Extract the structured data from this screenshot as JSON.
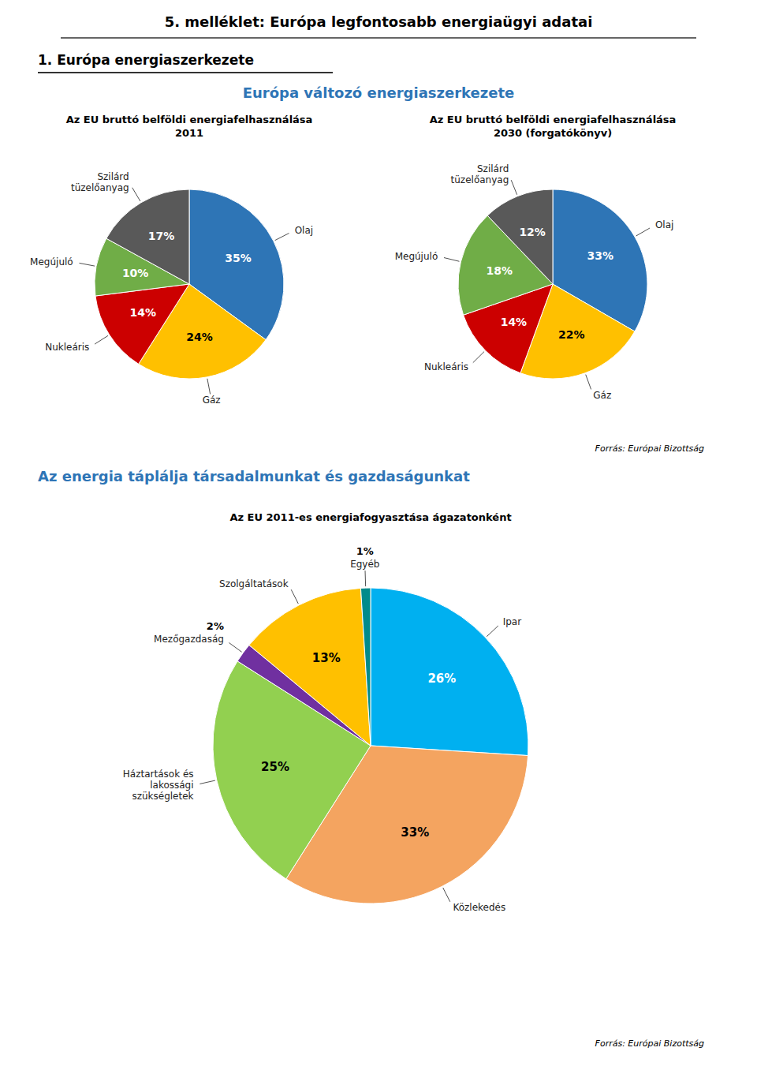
{
  "title": "5. melléklet: Európa legfontosabb energiaügyi adatai",
  "sections": [
    {
      "title": "1. Európa energiaszerkezete",
      "subtitle": "Európa változó energiaszerkezete"
    },
    {
      "title": "Az energia táplálja társadalmunkat és gazdaságunkat"
    }
  ],
  "source": "Forrás: Európai Bizottság",
  "chart_data": [
    {
      "type": "pie",
      "title": "Az EU bruttó belföldi energiafelhasználása",
      "subtitle": "2011",
      "categories": [
        "Olaj",
        "Gáz",
        "Nukleáris",
        "Megújuló",
        "Szilárd\ntüzelőanyag"
      ],
      "values": [
        35,
        24,
        14,
        10,
        17
      ],
      "value_labels": [
        "35%",
        "24%",
        "14%",
        "10%",
        "17%"
      ],
      "colors": [
        "#2E75B6",
        "#FFC000",
        "#CC0000",
        "#70AD47",
        "#595959"
      ],
      "data_labels": true
    },
    {
      "type": "pie",
      "title": "Az EU bruttó belföldi energiafelhasználása",
      "subtitle": "2030 (forgatókönyv)",
      "categories": [
        "Olaj",
        "Gáz",
        "Nukleáris",
        "Megújuló",
        "Szilárd\ntüzelőanyag"
      ],
      "values": [
        33,
        22,
        14,
        18,
        12
      ],
      "value_labels": [
        "33%",
        "22%",
        "14%",
        "18%",
        "12%"
      ],
      "colors": [
        "#2E75B6",
        "#FFC000",
        "#CC0000",
        "#70AD47",
        "#595959"
      ],
      "data_labels": true
    },
    {
      "type": "pie",
      "title": "Az EU 2011-es energiafogyasztása ágazatonként",
      "categories": [
        "Ipar",
        "Közlekedés",
        "Háztartások és\nlakossági\nszükségletek",
        "Mezőgazdaság",
        "Szolgáltatások",
        "Egyéb"
      ],
      "values": [
        26,
        33,
        25,
        2,
        13,
        1
      ],
      "value_labels": [
        "26%",
        "33%",
        "25%",
        "2%",
        "13%",
        "1%"
      ],
      "colors": [
        "#00B0F0",
        "#F4A460",
        "#92D050",
        "#7030A0",
        "#FFC000",
        "#008B8B"
      ],
      "data_labels": true
    }
  ]
}
